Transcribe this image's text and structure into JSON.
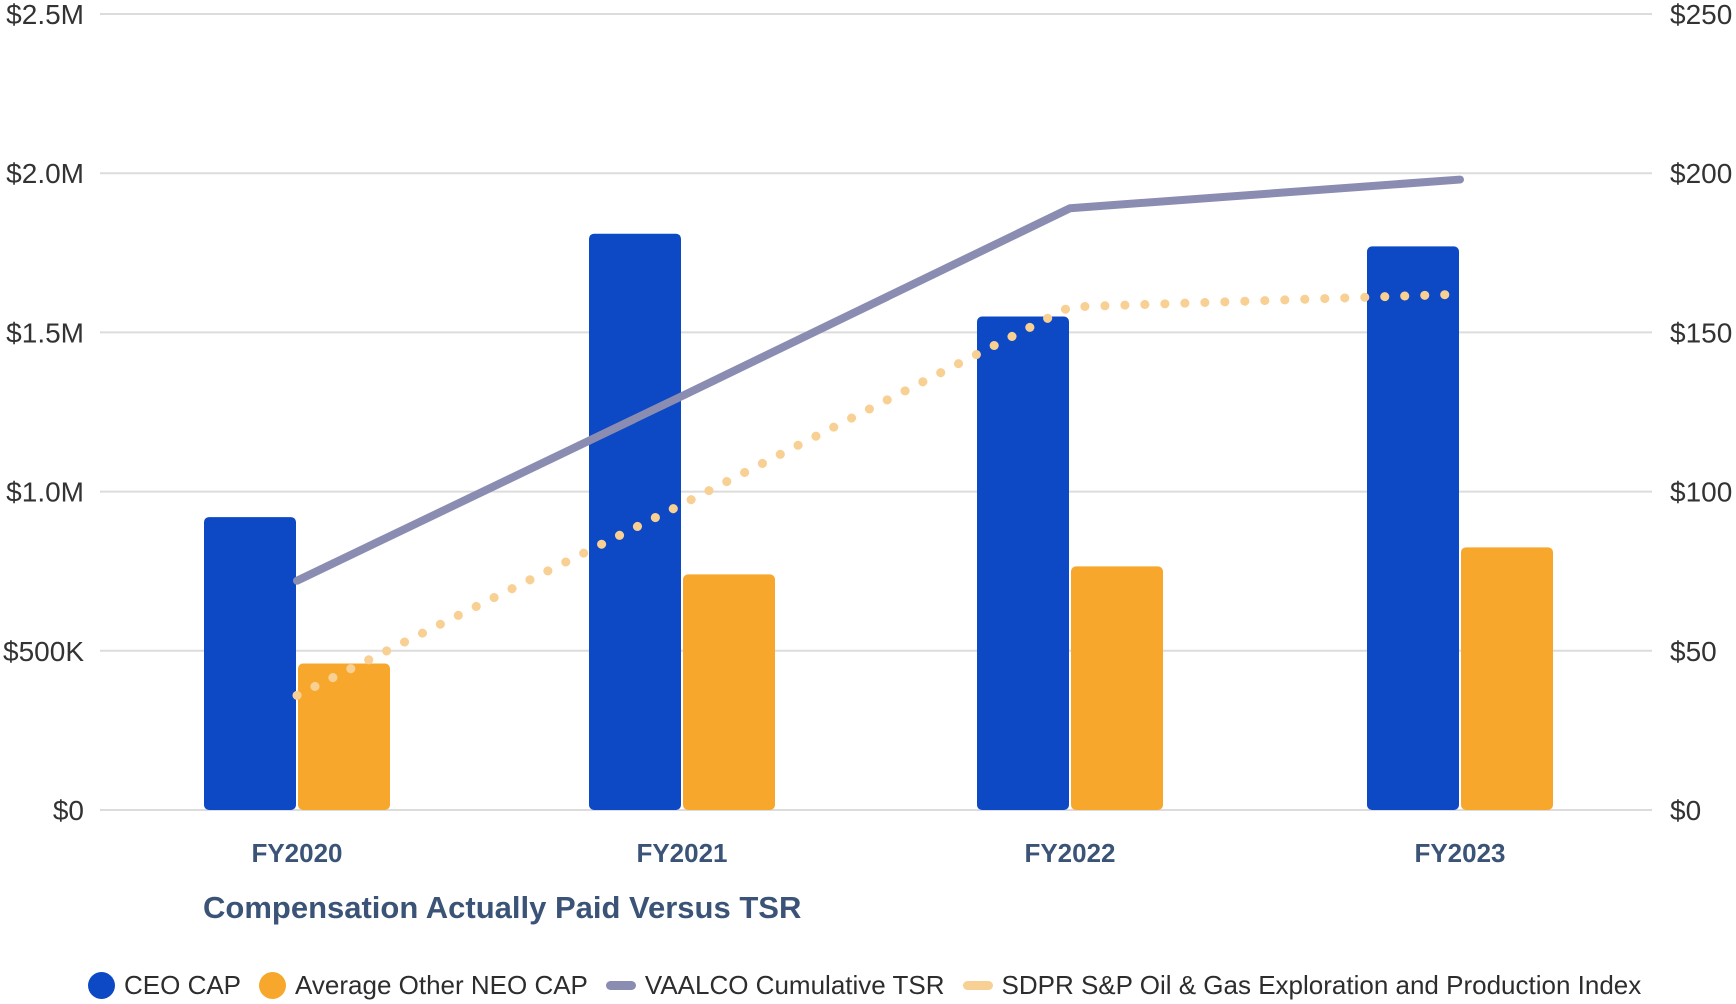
{
  "chart_data": {
    "type": "combo",
    "title": "Compensation Actually Paid Versus TSR",
    "categories": [
      "FY2020",
      "FY2021",
      "FY2022",
      "FY2023"
    ],
    "series": [
      {
        "name": "CEO CAP",
        "kind": "bar",
        "axis": "left",
        "color": "#0d49c4",
        "marker": "circle",
        "values": [
          920000,
          1810000,
          1550000,
          1770000
        ]
      },
      {
        "name": "Average Other NEO CAP",
        "kind": "bar",
        "axis": "left",
        "color": "#f7a82c",
        "marker": "circle",
        "values": [
          460000,
          740000,
          765000,
          825000
        ]
      },
      {
        "name": "VAALCO Cumulative TSR",
        "kind": "line",
        "style": "solid",
        "axis": "right",
        "color": "#8a8db1",
        "marker": "line",
        "values": [
          72,
          130,
          189,
          198
        ]
      },
      {
        "name": "SDPR S&P Oil & Gas Exploration and Production Index",
        "kind": "line",
        "style": "dotted",
        "axis": "right",
        "color": "#f8d094",
        "marker": "line",
        "values": [
          36,
          96,
          158,
          162
        ]
      }
    ],
    "axes": {
      "left": {
        "min": 0,
        "max": 2500000,
        "tick_values": [
          0,
          500000,
          1000000,
          1500000,
          2000000,
          2500000
        ],
        "tick_labels": [
          "$0",
          "$500K",
          "$1.0M",
          "$1.5M",
          "$2.0M",
          "$2.5M"
        ]
      },
      "right": {
        "min": 0,
        "max": 250,
        "tick_values": [
          0,
          50,
          100,
          150,
          200,
          250
        ],
        "tick_labels": [
          "$0",
          "$50",
          "$100",
          "$150",
          "$200",
          "$250"
        ]
      }
    },
    "grid": true,
    "legend_position": "bottom"
  },
  "style_colors": {
    "gridline": "#dcdcdc",
    "axis_text": "#333333",
    "category_text": "#3a5377",
    "title_text": "#3a5376",
    "legend_text": "#2d2d2d"
  }
}
